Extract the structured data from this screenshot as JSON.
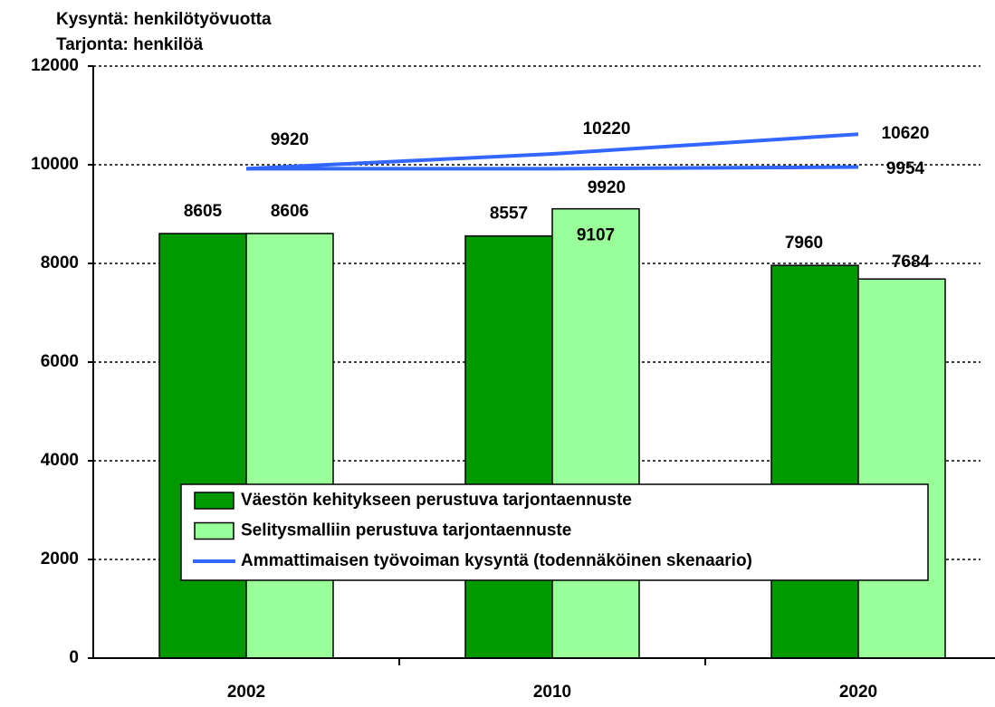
{
  "chart_data": {
    "type": "bar+line",
    "title_lines": [
      "Kysyntä: henkilötyövuotta",
      "Tarjonta: henkilöä"
    ],
    "categories": [
      "2002",
      "2010",
      "2020"
    ],
    "ylim": [
      0,
      12000
    ],
    "yticks": [
      0,
      2000,
      4000,
      6000,
      8000,
      10000,
      12000
    ],
    "grid": true,
    "legend": "center",
    "series": [
      {
        "name": "Väestön kehitykseen perustuva tarjontaennuste",
        "type": "bar",
        "color": "#009900",
        "values": [
          8605,
          8557,
          7960
        ]
      },
      {
        "name": "Selitysmalliin perustuva tarjontaennuste",
        "type": "bar",
        "color": "#99ff99",
        "values": [
          8606,
          9107,
          7684
        ]
      },
      {
        "name": "Ammattimaisen työvoiman kysyntä (todennäköinen skenaario)",
        "type": "line",
        "color": "#3366ff",
        "values": [
          9920,
          10220,
          10620
        ]
      },
      {
        "type": "line",
        "color": "#3366ff",
        "values": [
          9920,
          9920,
          9954
        ]
      }
    ]
  }
}
